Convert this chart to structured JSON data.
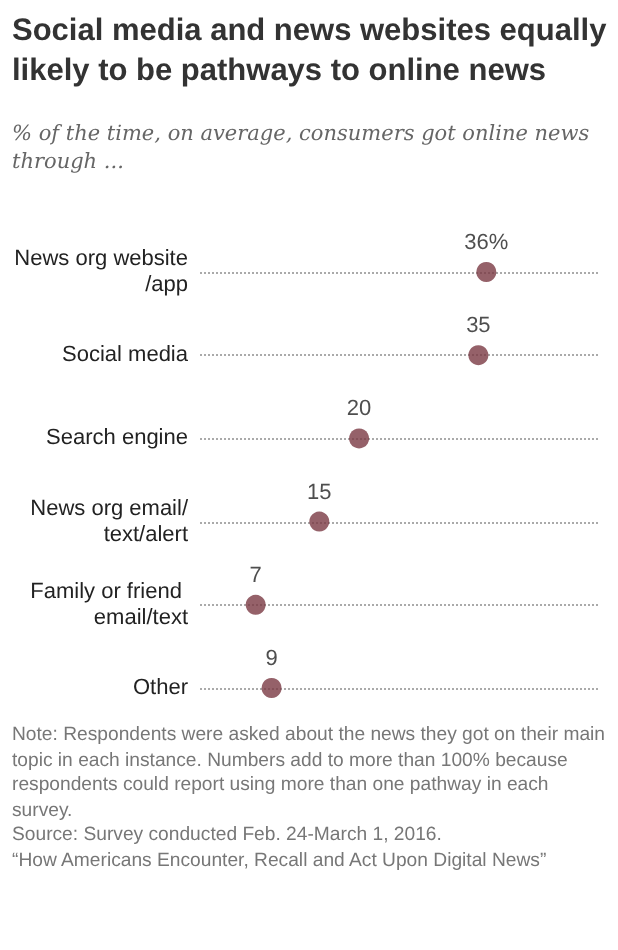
{
  "chart_data": {
    "type": "scatter",
    "orientation": "horizontal",
    "title": "Social media and news websites equally likely to be pathways to online news",
    "subtitle": "% of the time, on average, consumers got online news through ...",
    "categories": [
      "News org website/app",
      "Social media",
      "Search engine",
      "News org email/text/alert",
      "Family or friend email/text",
      "Other"
    ],
    "values": [
      36,
      35,
      20,
      15,
      7,
      9
    ],
    "value_labels": [
      "36%",
      "35",
      "20",
      "15",
      "7",
      "9"
    ],
    "color": "#7a3a44",
    "marker": "circle",
    "grid": "y",
    "line_style": "dotted",
    "annotations": [
      "Note: Respondents were asked about the news they got on their main topic in each instance. Numbers add to more than 100% because respondents could report using more than one pathway in each survey.",
      "Source: Survey conducted Feb. 24-March 1, 2016.",
      "“How Americans Encounter, Recall and Act Upon Digital News”"
    ]
  }
}
